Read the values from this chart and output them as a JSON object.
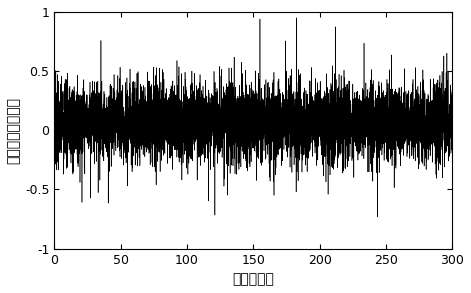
{
  "title": "",
  "xlabel": "时间（秒）",
  "ylabel": "运动位移（像素）",
  "xlim": [
    0,
    300
  ],
  "ylim": [
    -1,
    1
  ],
  "xticks": [
    0,
    50,
    100,
    150,
    200,
    250,
    300
  ],
  "yticks": [
    -1,
    -0.5,
    0,
    0.5,
    1
  ],
  "ytick_labels": [
    "-1",
    "-0.5",
    "0",
    "0.5",
    "1"
  ],
  "line_color": "#000000",
  "line_width": 0.4,
  "bg_color": "#ffffff",
  "n_points": 6000,
  "seed": 7,
  "mean": 0.07,
  "std_slow": 0.13,
  "std_fast": 0.1,
  "figsize": [
    4.71,
    2.93
  ],
  "dpi": 100
}
